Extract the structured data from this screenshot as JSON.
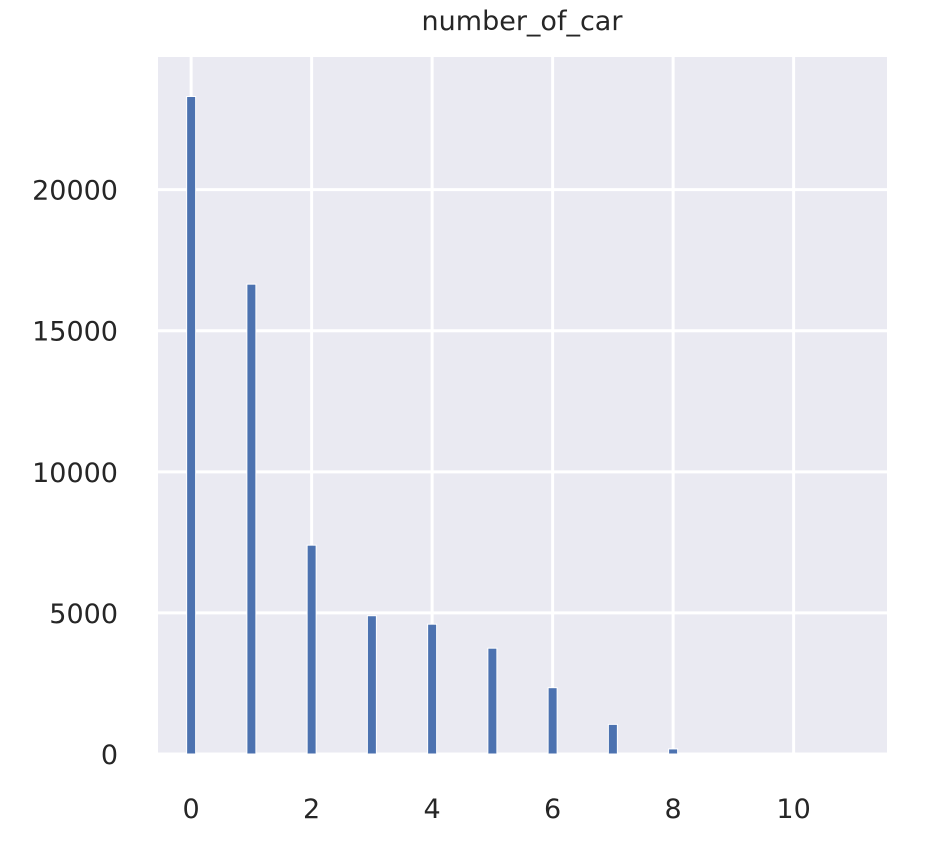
{
  "chart_data": {
    "type": "bar",
    "title": "number_of_car",
    "xlabel": "",
    "ylabel": "",
    "xlim": [
      -0.55,
      11.55
    ],
    "ylim": [
      0,
      24700
    ],
    "x_ticks": [
      0,
      2,
      4,
      6,
      8,
      10
    ],
    "y_ticks": [
      0,
      5000,
      10000,
      15000,
      20000
    ],
    "grid": true,
    "bar_color": "#4c72b0",
    "background_color": "#eaeaf2",
    "grid_color": "#ffffff",
    "bars": [
      {
        "x": 0,
        "value": 23300
      },
      {
        "x": 1,
        "value": 16650
      },
      {
        "x": 2,
        "value": 7400
      },
      {
        "x": 3,
        "value": 4900
      },
      {
        "x": 4,
        "value": 4600
      },
      {
        "x": 5,
        "value": 3750
      },
      {
        "x": 6,
        "value": 2350
      },
      {
        "x": 7,
        "value": 1050
      },
      {
        "x": 8,
        "value": 180
      },
      {
        "x": 9,
        "value": 20
      },
      {
        "x": 10,
        "value": 10
      },
      {
        "x": 11,
        "value": 5
      }
    ]
  }
}
